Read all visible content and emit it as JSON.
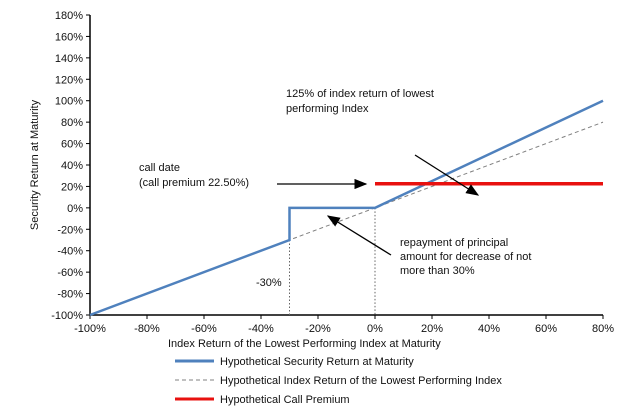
{
  "chart_data": {
    "type": "line",
    "xlabel": "Index Return of the Lowest Performing Index at Maturity",
    "ylabel": "Security Return at Maturity",
    "xlim": [
      -100,
      80
    ],
    "ylim": [
      -100,
      180
    ],
    "xticks": [
      -100,
      -80,
      -60,
      -40,
      -20,
      0,
      20,
      40,
      60,
      80
    ],
    "yticks": [
      -100,
      -80,
      -60,
      -40,
      -20,
      0,
      20,
      40,
      60,
      80,
      100,
      120,
      140,
      160,
      180
    ],
    "xtick_labels": [
      "-100%",
      "-80%",
      "-60%",
      "-40%",
      "-20%",
      "0%",
      "20%",
      "40%",
      "60%",
      "80%"
    ],
    "ytick_labels": [
      "-100%",
      "-80%",
      "-60%",
      "-40%",
      "-20%",
      "0%",
      "20%",
      "40%",
      "60%",
      "80%",
      "100%",
      "120%",
      "140%",
      "160%",
      "180%"
    ],
    "grid": false,
    "legend_placement": "bottom",
    "series": [
      {
        "name": "Hypothetical Security Return at Maturity",
        "color": "#4f81bd",
        "style": "solid",
        "x": [
          -100,
          -30,
          -30,
          0,
          80
        ],
        "y": [
          -100,
          -30,
          0,
          0,
          100
        ]
      },
      {
        "name": "Hypothetical Index Return of the Lowest Performing Index",
        "color": "#808080",
        "style": "dashed",
        "x": [
          -100,
          80
        ],
        "y": [
          -100,
          80
        ]
      },
      {
        "name": "Hypothetical Call Premium",
        "color": "#e8110f",
        "style": "solid",
        "x": [
          0,
          80
        ],
        "y": [
          22.5,
          22.5
        ]
      }
    ],
    "annotations": {
      "slope_line1": "125% of index return of lowest",
      "slope_line2": "performing Index",
      "call_line1": "call date",
      "call_line2": "(call premium 22.50%)",
      "repay_line1": "repayment of principal",
      "repay_line2": "amount for decrease of not",
      "repay_line3": "more than 30%",
      "barrier_label": "-30%"
    }
  }
}
